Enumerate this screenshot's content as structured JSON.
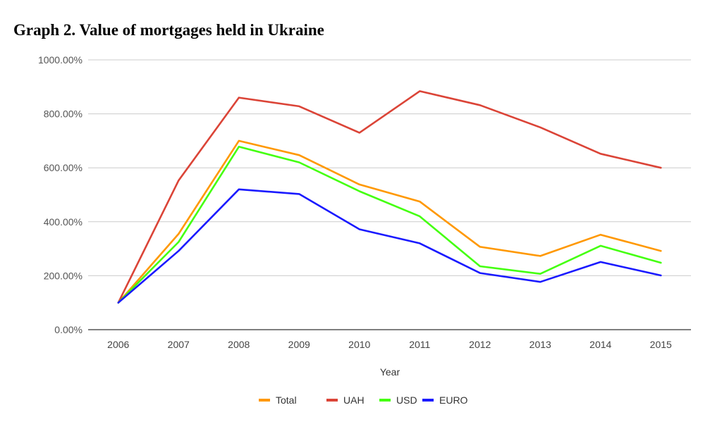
{
  "title": "Graph 2. Value of mortgages held in Ukraine",
  "chart_data": {
    "type": "line",
    "title": "Graph 2. Value of mortgages held in Ukraine",
    "xlabel": "Year",
    "ylabel": "",
    "x": [
      "2006",
      "2007",
      "2008",
      "2009",
      "2010",
      "2011",
      "2012",
      "2013",
      "2014",
      "2015"
    ],
    "ylim": [
      0,
      1000
    ],
    "yticks": [
      0,
      200,
      400,
      600,
      800,
      1000
    ],
    "ytick_labels": [
      "0.00%",
      "200.00%",
      "400.00%",
      "600.00%",
      "800.00%",
      "1000.00%"
    ],
    "grid": true,
    "legend_position": "bottom",
    "series": [
      {
        "name": "Total",
        "color": "#ff9800",
        "values": [
          100,
          355,
          700,
          647,
          538,
          475,
          307,
          273,
          352,
          292
        ]
      },
      {
        "name": "UAH",
        "color": "#db4437",
        "values": [
          100,
          553,
          860,
          828,
          730,
          884,
          832,
          750,
          652,
          600
        ]
      },
      {
        "name": "USD",
        "color": "#44ff0f",
        "values": [
          100,
          325,
          678,
          620,
          513,
          420,
          235,
          207,
          311,
          248
        ]
      },
      {
        "name": "EURO",
        "color": "#1a1aff",
        "values": [
          100,
          292,
          520,
          503,
          372,
          320,
          210,
          177,
          251,
          201
        ]
      }
    ]
  }
}
